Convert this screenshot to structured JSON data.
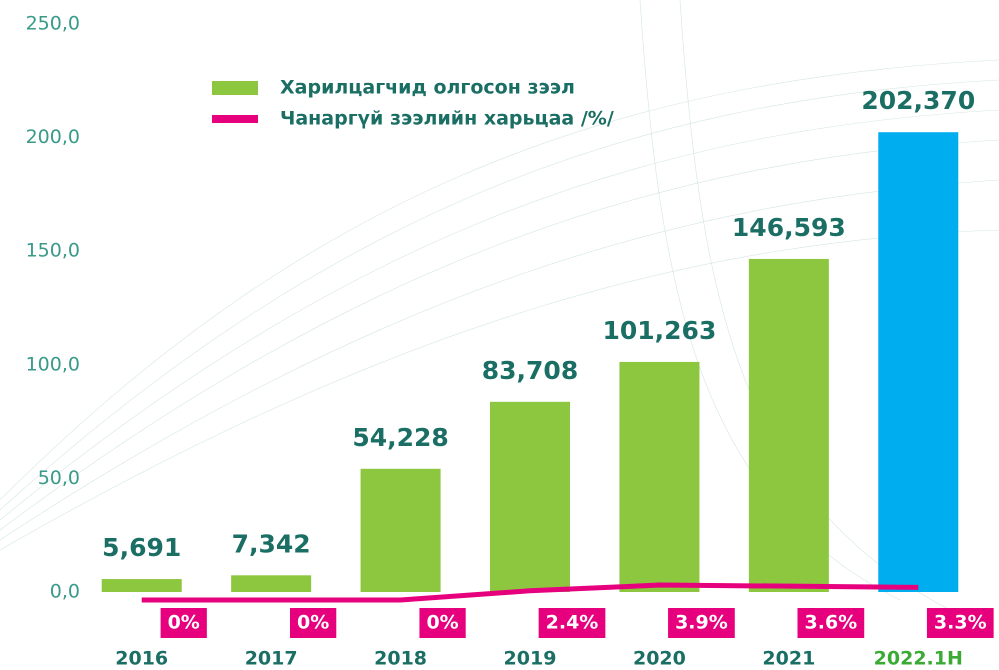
{
  "chart_data": {
    "type": "bar",
    "categories": [
      "2016",
      "2017",
      "2018",
      "2019",
      "2020",
      "2021",
      "2022.1H"
    ],
    "series": [
      {
        "name": "Харилцагчид олгосон зээл",
        "type": "bar",
        "color": "#8dc63f",
        "colors": [
          "#8dc63f",
          "#8dc63f",
          "#8dc63f",
          "#8dc63f",
          "#8dc63f",
          "#8dc63f",
          "#00aeef"
        ],
        "values": [
          5.691,
          7.342,
          54.228,
          83.708,
          101.263,
          146.593,
          202.37
        ],
        "value_labels": [
          "5,691",
          "7,342",
          "54,228",
          "83,708",
          "101,263",
          "146,593",
          "202,370"
        ]
      },
      {
        "name": "Чанаргүй зээлийн харьцаа /%/",
        "type": "line",
        "axis": "y2",
        "color": "#e6007e",
        "values": [
          0,
          0,
          0,
          2.4,
          3.9,
          3.6,
          3.3
        ],
        "value_labels": [
          "0%",
          "0%",
          "0%",
          "2.4%",
          "3.9%",
          "3.6%",
          "3.3%"
        ]
      }
    ],
    "ylim": [
      0,
      250
    ],
    "yticks": [
      {
        "value": 0,
        "label": "0,0"
      },
      {
        "value": 50,
        "label": "50,0"
      },
      {
        "value": 100,
        "label": "100,0"
      },
      {
        "value": 150,
        "label": "150,0"
      },
      {
        "value": 200,
        "label": "200,0"
      },
      {
        "value": 250,
        "label": "250,0"
      }
    ],
    "y2lim": [
      0,
      150
    ],
    "legend": "top-left",
    "grid": false
  }
}
